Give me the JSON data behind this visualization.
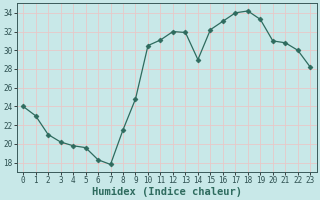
{
  "x": [
    0,
    1,
    2,
    3,
    4,
    5,
    6,
    7,
    8,
    9,
    10,
    11,
    12,
    13,
    14,
    15,
    16,
    17,
    18,
    19,
    20,
    21,
    22,
    23
  ],
  "y": [
    24,
    23,
    21,
    20.2,
    19.8,
    19.6,
    18.3,
    17.8,
    21.5,
    24.8,
    30.5,
    31.1,
    32.0,
    31.9,
    29.0,
    32.2,
    33.1,
    34.0,
    34.2,
    33.3,
    31.0,
    30.8,
    30.0,
    28.2
  ],
  "line_color": "#2e6b5e",
  "marker": "D",
  "marker_size": 2.5,
  "bg_color": "#c8e8e8",
  "grid_color": "#e8c8c8",
  "xlabel": "Humidex (Indice chaleur)",
  "ylabel": "",
  "xlim": [
    -0.5,
    23.5
  ],
  "ylim": [
    17,
    35
  ],
  "yticks": [
    18,
    20,
    22,
    24,
    26,
    28,
    30,
    32,
    34
  ],
  "xticks": [
    0,
    1,
    2,
    3,
    4,
    5,
    6,
    7,
    8,
    9,
    10,
    11,
    12,
    13,
    14,
    15,
    16,
    17,
    18,
    19,
    20,
    21,
    22,
    23
  ],
  "tick_label_size": 5.5,
  "xlabel_size": 7.5,
  "xlabel_weight": "bold"
}
